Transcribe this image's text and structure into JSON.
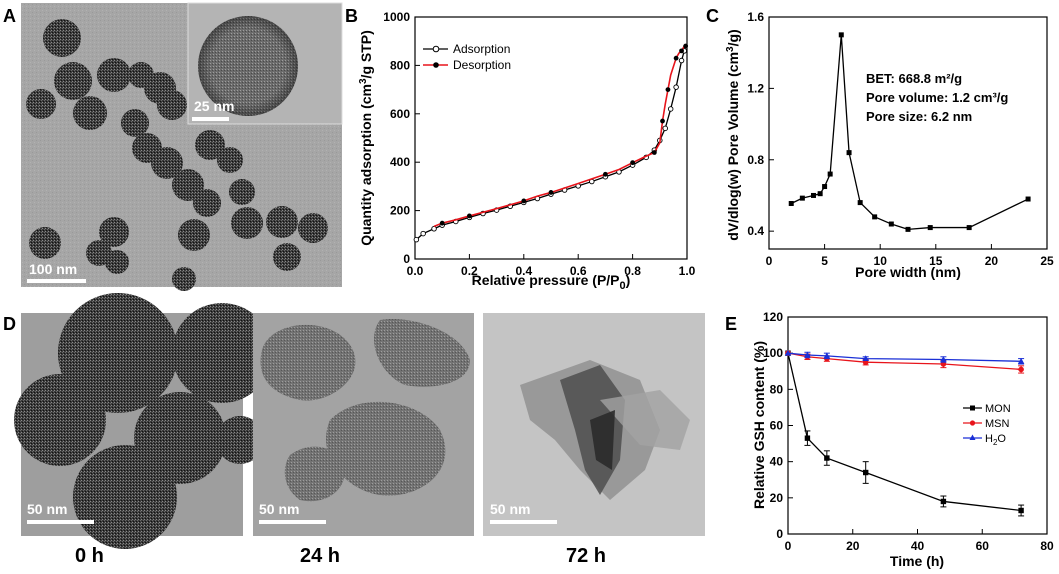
{
  "panels": {
    "A": {
      "label": "A",
      "scale_main": "100 nm",
      "scale_inset": "25 nm"
    },
    "D": {
      "label": "D",
      "images": [
        {
          "scale": "50 nm",
          "time": "0 h"
        },
        {
          "scale": "50 nm",
          "time": "24 h"
        },
        {
          "scale": "50 nm",
          "time": "72 h"
        }
      ]
    }
  },
  "chart_data": [
    {
      "panel": "B",
      "type": "line",
      "xlabel": "Relative pressure (P/P",
      "xlabel_sub": "0",
      "xlabel_end": ")",
      "ylabel": "Quantity adsorption (cm",
      "ylabel_sup": "3",
      "ylabel_end": "/g STP)",
      "xlim": [
        0.0,
        1.0
      ],
      "ylim": [
        0,
        1000
      ],
      "xticks": [
        "0.0",
        "0.2",
        "0.4",
        "0.6",
        "0.8",
        "1.0"
      ],
      "yticks": [
        "0",
        "200",
        "400",
        "600",
        "800",
        "1000"
      ],
      "legend_position": "top-left",
      "series": [
        {
          "name": "Adsorption",
          "color": "#000000",
          "marker": "open-circle",
          "x": [
            0.005,
            0.03,
            0.07,
            0.1,
            0.15,
            0.2,
            0.25,
            0.3,
            0.35,
            0.4,
            0.45,
            0.5,
            0.55,
            0.6,
            0.65,
            0.7,
            0.75,
            0.8,
            0.85,
            0.88,
            0.9,
            0.92,
            0.94,
            0.96,
            0.98,
            0.99
          ],
          "y": [
            80,
            105,
            125,
            140,
            155,
            172,
            188,
            202,
            218,
            234,
            250,
            268,
            285,
            302,
            320,
            340,
            360,
            388,
            420,
            450,
            490,
            540,
            620,
            710,
            820,
            860
          ]
        },
        {
          "name": "Desorption",
          "color": "#e8141b",
          "marker": "filled-circle",
          "x": [
            0.995,
            0.99,
            0.98,
            0.97,
            0.96,
            0.94,
            0.93,
            0.92,
            0.91,
            0.9,
            0.88,
            0.85,
            0.8,
            0.75,
            0.7,
            0.6,
            0.5,
            0.45,
            0.4,
            0.3,
            0.2,
            0.15,
            0.1,
            0.07
          ],
          "y": [
            880,
            880,
            860,
            850,
            830,
            760,
            700,
            640,
            570,
            480,
            440,
            425,
            398,
            370,
            350,
            312,
            275,
            260,
            240,
            208,
            178,
            162,
            148,
            135
          ]
        }
      ]
    },
    {
      "panel": "C",
      "type": "line",
      "xlabel": "Pore width (nm)",
      "ylabel": "dV/dlog(w) Pore Volume (cm",
      "ylabel_sup": "3",
      "ylabel_end": "/g)",
      "xlim": [
        0,
        25
      ],
      "ylim": [
        0.3,
        1.6
      ],
      "xticks": [
        "0",
        "5",
        "10",
        "15",
        "20",
        "25"
      ],
      "yticks": [
        "0.4",
        "0.8",
        "1.2",
        "1.6"
      ],
      "annotations": [
        "BET: 668.8 m²/g",
        "Pore volume: 1.2 cm³/g",
        "Pore size: 6.2 nm"
      ],
      "series": [
        {
          "color": "#000000",
          "marker": "square",
          "x": [
            2.0,
            3.0,
            4.0,
            4.6,
            5.0,
            5.5,
            6.5,
            7.2,
            8.2,
            9.5,
            11.0,
            12.5,
            14.5,
            18.0,
            23.3
          ],
          "y": [
            0.555,
            0.585,
            0.6,
            0.61,
            0.65,
            0.72,
            1.5,
            0.84,
            0.56,
            0.48,
            0.44,
            0.41,
            0.42,
            0.42,
            0.58
          ]
        }
      ]
    },
    {
      "panel": "E",
      "type": "line",
      "xlabel": "Time (h)",
      "ylabel": "Relative GSH content (%)",
      "xlim": [
        0,
        80
      ],
      "ylim": [
        0,
        120
      ],
      "xticks": [
        "0",
        "20",
        "40",
        "60",
        "80"
      ],
      "yticks": [
        "0",
        "20",
        "40",
        "60",
        "80",
        "100",
        "120"
      ],
      "legend_position": "middle-right",
      "series": [
        {
          "name": "MON",
          "color": "#000000",
          "marker": "square",
          "x": [
            0,
            6,
            12,
            24,
            48,
            72
          ],
          "y": [
            100,
            53,
            42,
            34,
            18,
            13
          ],
          "err": [
            0,
            4,
            4,
            6,
            3,
            3
          ]
        },
        {
          "name": "MSN",
          "color": "#e8141b",
          "marker": "circle",
          "x": [
            0,
            6,
            12,
            24,
            48,
            72
          ],
          "y": [
            100,
            98,
            97,
            95,
            94,
            91
          ],
          "err": [
            0,
            1.5,
            1.5,
            1.5,
            2,
            2
          ]
        },
        {
          "name": "H",
          "name_sub": "2",
          "name_end": "O",
          "color": "#1a2fd6",
          "marker": "triangle",
          "x": [
            0,
            6,
            12,
            24,
            48,
            72
          ],
          "y": [
            100,
            99,
            98.5,
            97,
            96.5,
            95.5
          ],
          "err": [
            0,
            1.5,
            1.5,
            1,
            1.5,
            1.5
          ]
        }
      ]
    }
  ]
}
